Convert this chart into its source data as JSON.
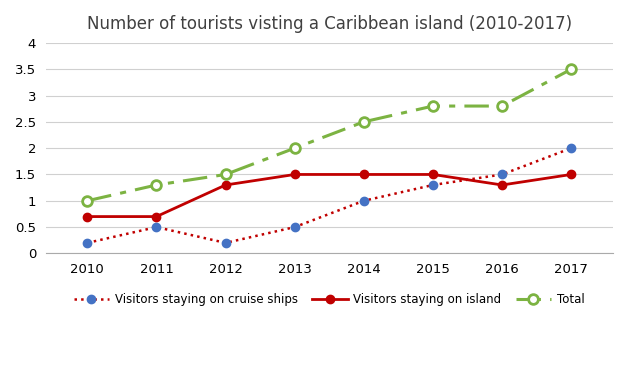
{
  "title": "Number of tourists visting a Caribbean island (2010-2017)",
  "years": [
    2010,
    2011,
    2012,
    2013,
    2014,
    2015,
    2016,
    2017
  ],
  "cruise_ships": [
    0.2,
    0.5,
    0.2,
    0.5,
    1.0,
    1.3,
    1.5,
    2.0
  ],
  "island": [
    0.7,
    0.7,
    1.3,
    1.5,
    1.5,
    1.5,
    1.3,
    1.5
  ],
  "total": [
    1.0,
    1.3,
    1.5,
    2.0,
    2.5,
    2.8,
    2.8,
    3.5
  ],
  "cruise_line_color": "#C00000",
  "cruise_marker_color": "#4472C4",
  "island_color": "#C00000",
  "total_color": "#7CB342",
  "ylim": [
    0,
    4
  ],
  "yticks": [
    0,
    0.5,
    1.0,
    1.5,
    2.0,
    2.5,
    3.0,
    3.5,
    4.0
  ],
  "legend_cruise": "Visitors staying on cruise ships",
  "legend_island": "Visitors staying on island",
  "legend_total": "Total",
  "background_color": "#ffffff",
  "grid_color": "#d0d0d0"
}
